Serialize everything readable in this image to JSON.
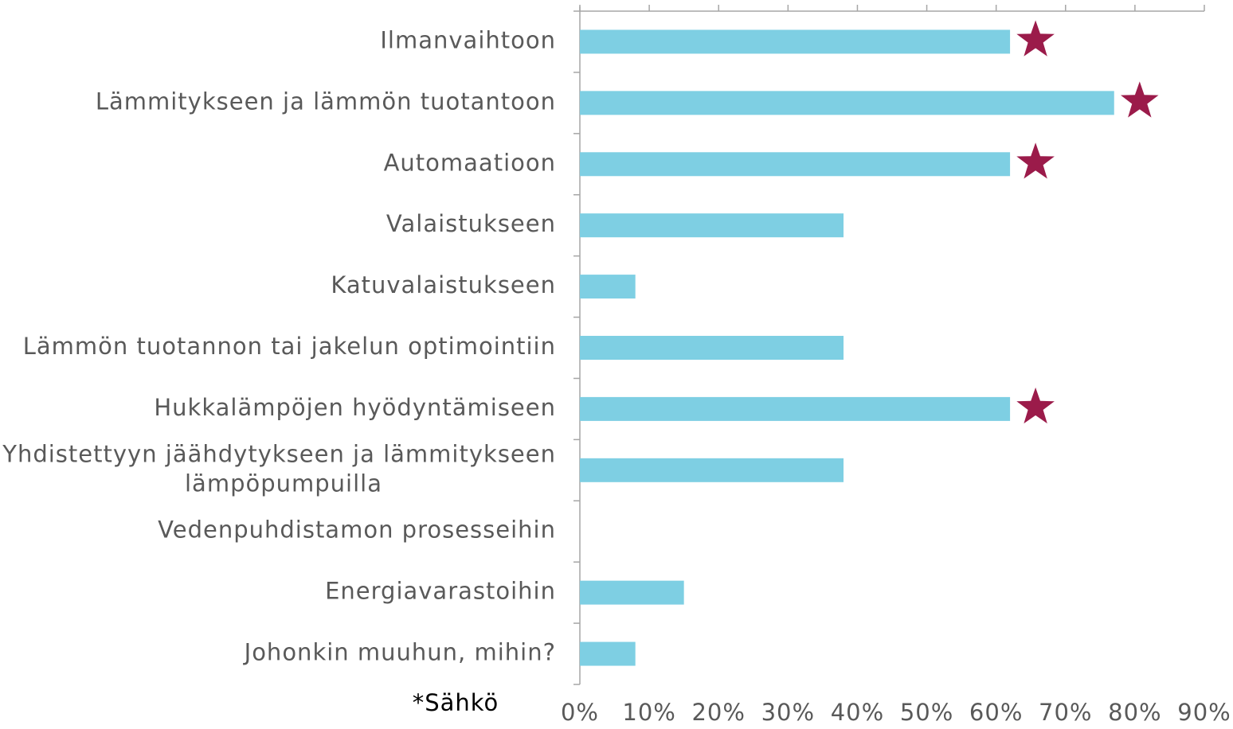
{
  "chart_data": {
    "type": "hbar",
    "categories": [
      "Ilmanvaihtoon",
      "Lämmitykseen ja lämmön tuotantoon",
      "Automaatioon",
      "Valaistukseen",
      "Katuvalaistukseen",
      "Lämmön tuotannon tai jakelun optimointiin",
      "Hukkalämpöjen hyödyntämiseen",
      "Yhdistettyyn jäähdytykseen ja lämmitykseen\nlämpöpumpuilla",
      "Vedenpuhdistamon prosesseihin",
      "Energiavarastoihin",
      "Johonkin muuhun, mihin?"
    ],
    "values": [
      62,
      77,
      62,
      38,
      8,
      38,
      62,
      38,
      0,
      15,
      8
    ],
    "starred": [
      true,
      true,
      true,
      false,
      false,
      false,
      true,
      false,
      false,
      false,
      false
    ],
    "color": "#7ecfe3",
    "star_color": "#9b1b4a",
    "annotation": "*Sähkö",
    "xlim": [
      0,
      90
    ],
    "xticks": [
      {
        "value": 0,
        "label": "0%"
      },
      {
        "value": 10,
        "label": "10%"
      },
      {
        "value": 20,
        "label": "20%"
      },
      {
        "value": 30,
        "label": "30%"
      },
      {
        "value": 40,
        "label": "40%"
      },
      {
        "value": 50,
        "label": "50%"
      },
      {
        "value": 60,
        "label": "60%"
      },
      {
        "value": 70,
        "label": "70%"
      },
      {
        "value": 80,
        "label": "80%"
      },
      {
        "value": 90,
        "label": "90%"
      }
    ]
  }
}
